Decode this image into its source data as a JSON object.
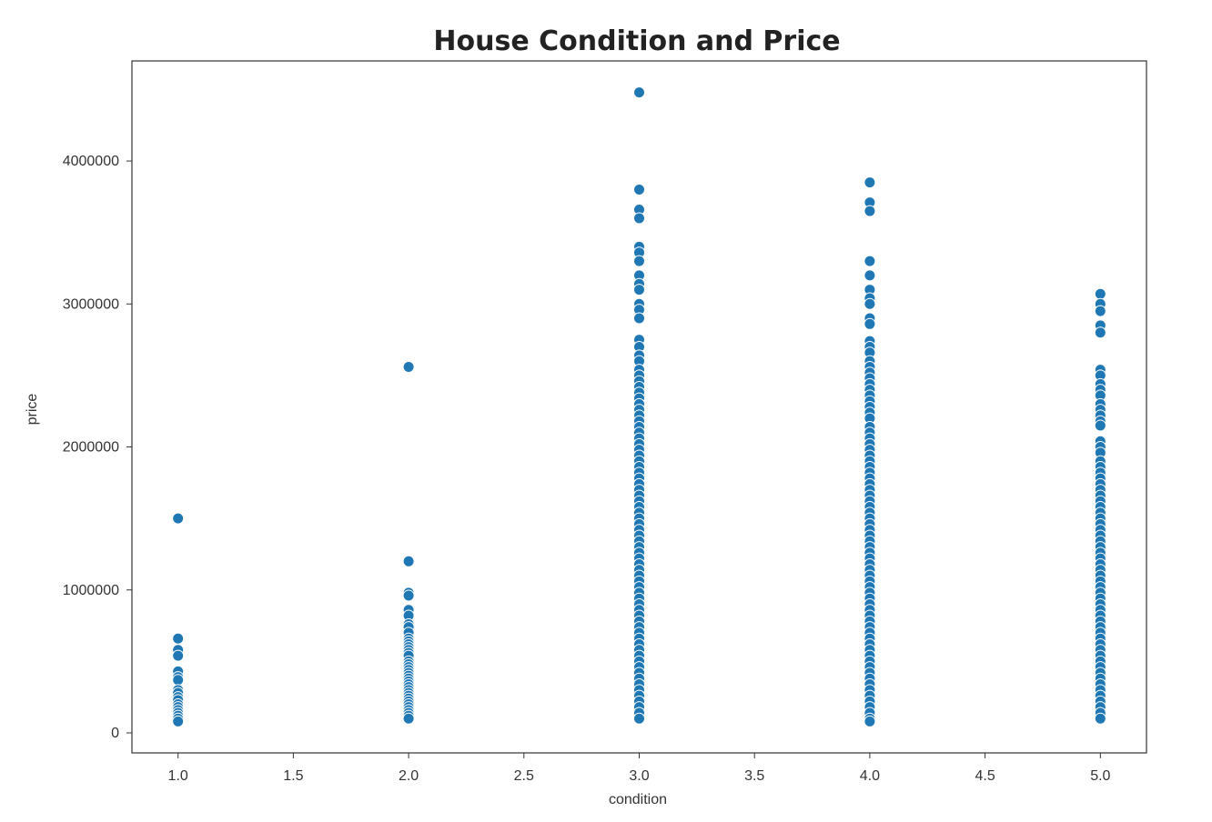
{
  "chart_data": {
    "type": "scatter",
    "title": "House Condition and Price",
    "xlabel": "condition",
    "ylabel": "price",
    "xlim": [
      0.8,
      5.2
    ],
    "ylim": [
      -140000,
      4700000
    ],
    "xticks": [
      1.0,
      1.5,
      2.0,
      2.5,
      3.0,
      3.5,
      4.0,
      4.5,
      5.0
    ],
    "xtick_labels": [
      "1.0",
      "1.5",
      "2.0",
      "2.5",
      "3.0",
      "3.5",
      "4.0",
      "4.5",
      "5.0"
    ],
    "yticks": [
      0,
      1000000,
      2000000,
      3000000,
      4000000
    ],
    "ytick_labels": [
      "0",
      "1000000",
      "2000000",
      "3000000",
      "4000000"
    ],
    "grid": false,
    "marker_color": "#1f77b4",
    "marker_edge_color": "#ffffff",
    "series": [
      {
        "x": 1,
        "values": [
          1500000,
          660000,
          580000,
          540000,
          430000,
          390000,
          370000,
          300000,
          280000,
          250000,
          230000,
          200000,
          180000,
          160000,
          140000,
          120000,
          100000,
          80000
        ]
      },
      {
        "x": 2,
        "values": [
          2560000,
          1200000,
          980000,
          960000,
          860000,
          820000,
          760000,
          740000,
          700000,
          660000,
          640000,
          620000,
          600000,
          580000,
          560000,
          540000,
          500000,
          480000,
          460000,
          440000,
          420000,
          400000,
          380000,
          360000,
          340000,
          320000,
          300000,
          280000,
          260000,
          240000,
          220000,
          200000,
          180000,
          160000,
          140000,
          120000,
          100000
        ]
      },
      {
        "x": 3,
        "values": [
          4480000,
          3800000,
          3660000,
          3600000,
          3400000,
          3360000,
          3300000,
          3200000,
          3140000,
          3100000,
          3000000,
          2960000,
          2900000,
          2750000,
          2700000,
          2640000,
          2600000,
          2540000,
          2500000,
          2460000,
          2420000,
          2380000,
          2340000,
          2300000,
          2260000,
          2220000,
          2180000,
          2140000,
          2100000,
          2060000,
          2020000,
          1980000,
          1940000,
          1900000,
          1860000,
          1820000,
          1780000,
          1740000,
          1700000,
          1660000,
          1620000,
          1580000,
          1540000,
          1500000,
          1460000,
          1420000,
          1380000,
          1340000,
          1300000,
          1260000,
          1220000,
          1180000,
          1140000,
          1100000,
          1060000,
          1020000,
          980000,
          940000,
          900000,
          860000,
          820000,
          780000,
          740000,
          700000,
          660000,
          620000,
          580000,
          540000,
          500000,
          460000,
          420000,
          380000,
          340000,
          300000,
          260000,
          220000,
          180000,
          140000,
          100000
        ]
      },
      {
        "x": 4,
        "values": [
          3850000,
          3710000,
          3650000,
          3300000,
          3200000,
          3100000,
          3040000,
          3000000,
          2900000,
          2860000,
          2740000,
          2700000,
          2660000,
          2600000,
          2560000,
          2520000,
          2480000,
          2440000,
          2400000,
          2360000,
          2320000,
          2280000,
          2240000,
          2200000,
          2140000,
          2100000,
          2060000,
          2020000,
          1980000,
          1940000,
          1900000,
          1860000,
          1820000,
          1780000,
          1740000,
          1700000,
          1660000,
          1620000,
          1580000,
          1540000,
          1500000,
          1460000,
          1420000,
          1380000,
          1340000,
          1300000,
          1260000,
          1220000,
          1180000,
          1140000,
          1100000,
          1060000,
          1020000,
          980000,
          940000,
          900000,
          860000,
          820000,
          780000,
          740000,
          700000,
          660000,
          620000,
          580000,
          540000,
          500000,
          460000,
          420000,
          380000,
          340000,
          300000,
          260000,
          220000,
          180000,
          140000,
          100000,
          80000
        ]
      },
      {
        "x": 5,
        "values": [
          3070000,
          3000000,
          2950000,
          2850000,
          2800000,
          2540000,
          2500000,
          2440000,
          2400000,
          2360000,
          2300000,
          2260000,
          2220000,
          2180000,
          2150000,
          2040000,
          2000000,
          1960000,
          1900000,
          1860000,
          1820000,
          1780000,
          1740000,
          1700000,
          1660000,
          1620000,
          1580000,
          1540000,
          1500000,
          1460000,
          1420000,
          1380000,
          1340000,
          1300000,
          1260000,
          1220000,
          1180000,
          1140000,
          1100000,
          1060000,
          1020000,
          980000,
          940000,
          900000,
          860000,
          820000,
          780000,
          740000,
          700000,
          660000,
          620000,
          580000,
          540000,
          500000,
          460000,
          420000,
          380000,
          340000,
          300000,
          260000,
          220000,
          180000,
          140000,
          100000
        ]
      }
    ]
  }
}
